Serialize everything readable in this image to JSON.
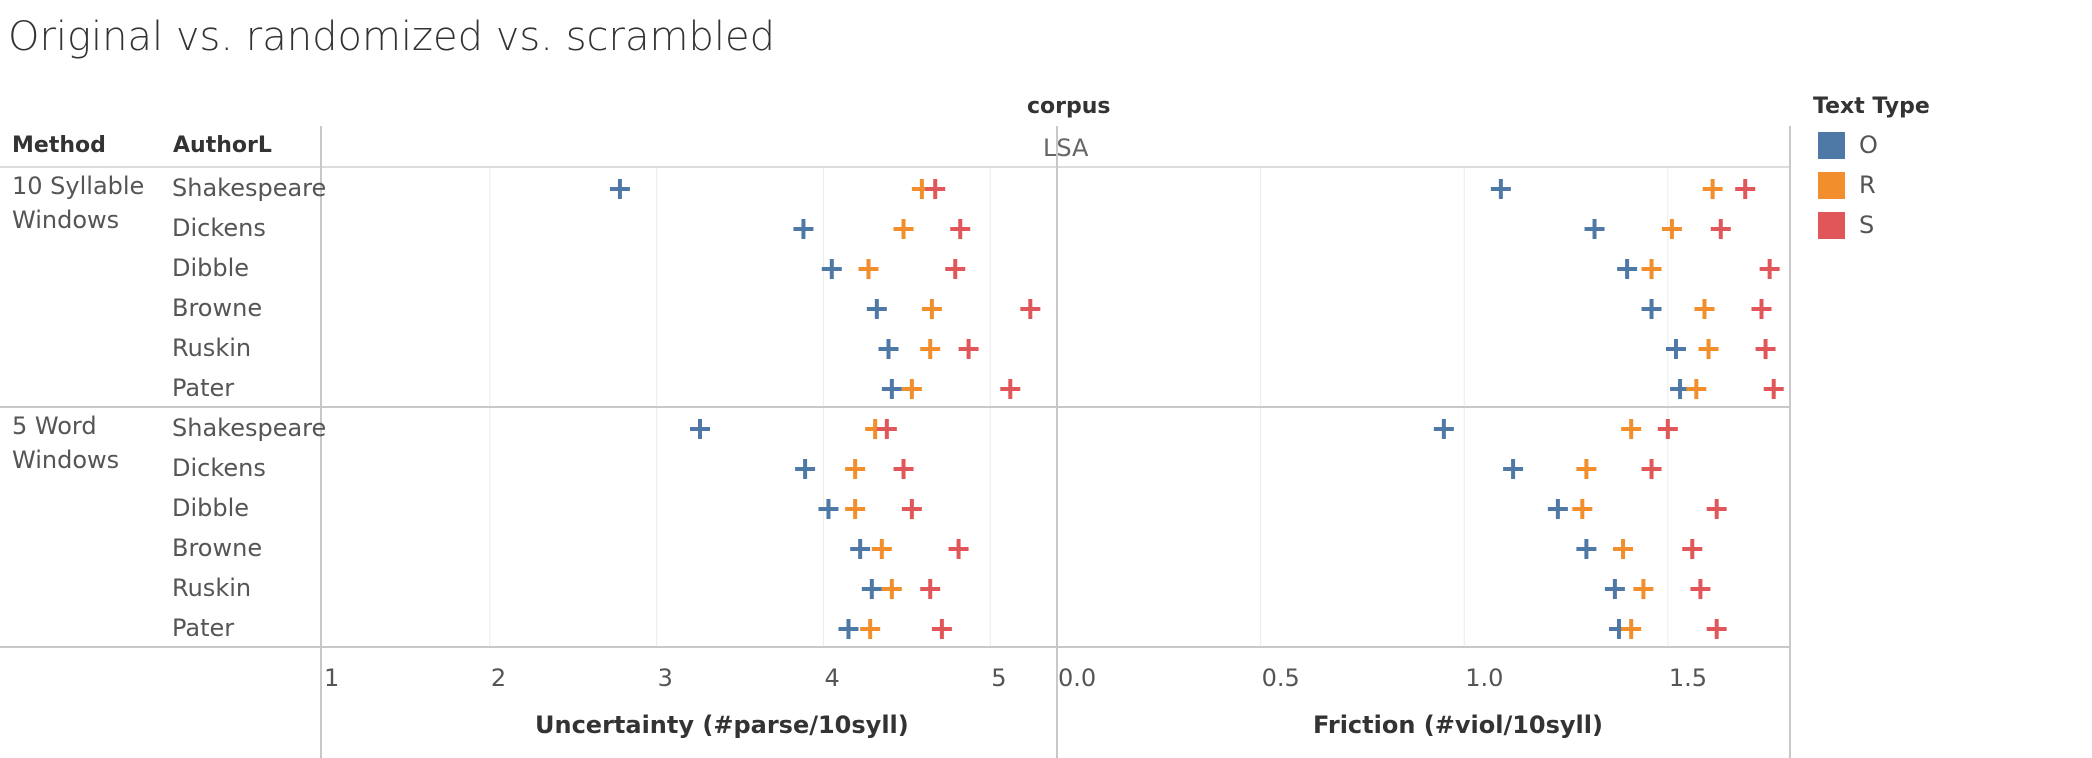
{
  "title": "Original vs. randomized vs. scrambled",
  "headers": {
    "method": "Method",
    "author": "AuthorL",
    "corpus": "corpus",
    "panel": "LSA"
  },
  "legend": {
    "title": "Text Type",
    "items": [
      {
        "label": "O",
        "color": "#4E79A7"
      },
      {
        "label": "R",
        "color": "#F28E2B"
      },
      {
        "label": "S",
        "color": "#E15759"
      }
    ]
  },
  "chart_data": {
    "type": "scatter",
    "marker": "plus",
    "row_groups": [
      {
        "method": "10 Syllable Windows",
        "authors": [
          "Shakespeare",
          "Dickens",
          "Dibble",
          "Browne",
          "Ruskin",
          "Pater"
        ]
      },
      {
        "method": "5 Word Windows",
        "authors": [
          "Shakespeare",
          "Dickens",
          "Dibble",
          "Browne",
          "Ruskin",
          "Pater"
        ]
      }
    ],
    "series_names": [
      "O",
      "R",
      "S"
    ],
    "panels": [
      {
        "xlabel": "Uncertainty (#parse/10syll)",
        "xlim": [
          1,
          5.4
        ],
        "ticks": [
          "1",
          "2",
          "3",
          "4",
          "5"
        ],
        "tick_values": [
          1,
          2,
          3,
          4,
          5
        ],
        "values": {
          "O": [
            [
              2.78,
              3.88,
              4.05,
              4.32,
              4.39,
              4.41
            ],
            [
              3.26,
              3.89,
              4.03,
              4.22,
              4.29,
              4.15
            ]
          ],
          "R": [
            [
              4.59,
              4.48,
              4.27,
              4.65,
              4.64,
              4.53
            ],
            [
              4.31,
              4.19,
              4.19,
              4.35,
              4.41,
              4.28
            ]
          ],
          "S": [
            [
              4.67,
              4.82,
              4.79,
              5.24,
              4.87,
              5.12
            ],
            [
              4.38,
              4.48,
              4.53,
              4.81,
              4.64,
              4.71
            ]
          ]
        }
      },
      {
        "xlabel": "Friction (#viol/10syll)",
        "xlim": [
          0,
          1.8
        ],
        "ticks": [
          "0.0",
          "0.5",
          "1.0",
          "1.5"
        ],
        "tick_values": [
          0,
          0.5,
          1.0,
          1.5
        ],
        "values": {
          "O": [
            [
              1.09,
              1.32,
              1.4,
              1.46,
              1.52,
              1.53
            ],
            [
              0.95,
              1.12,
              1.23,
              1.3,
              1.37,
              1.38
            ]
          ],
          "R": [
            [
              1.61,
              1.51,
              1.46,
              1.59,
              1.6,
              1.57
            ],
            [
              1.41,
              1.3,
              1.29,
              1.39,
              1.44,
              1.41
            ]
          ],
          "S": [
            [
              1.69,
              1.63,
              1.75,
              1.73,
              1.74,
              1.76
            ],
            [
              1.5,
              1.46,
              1.62,
              1.56,
              1.58,
              1.62
            ]
          ]
        }
      }
    ]
  }
}
